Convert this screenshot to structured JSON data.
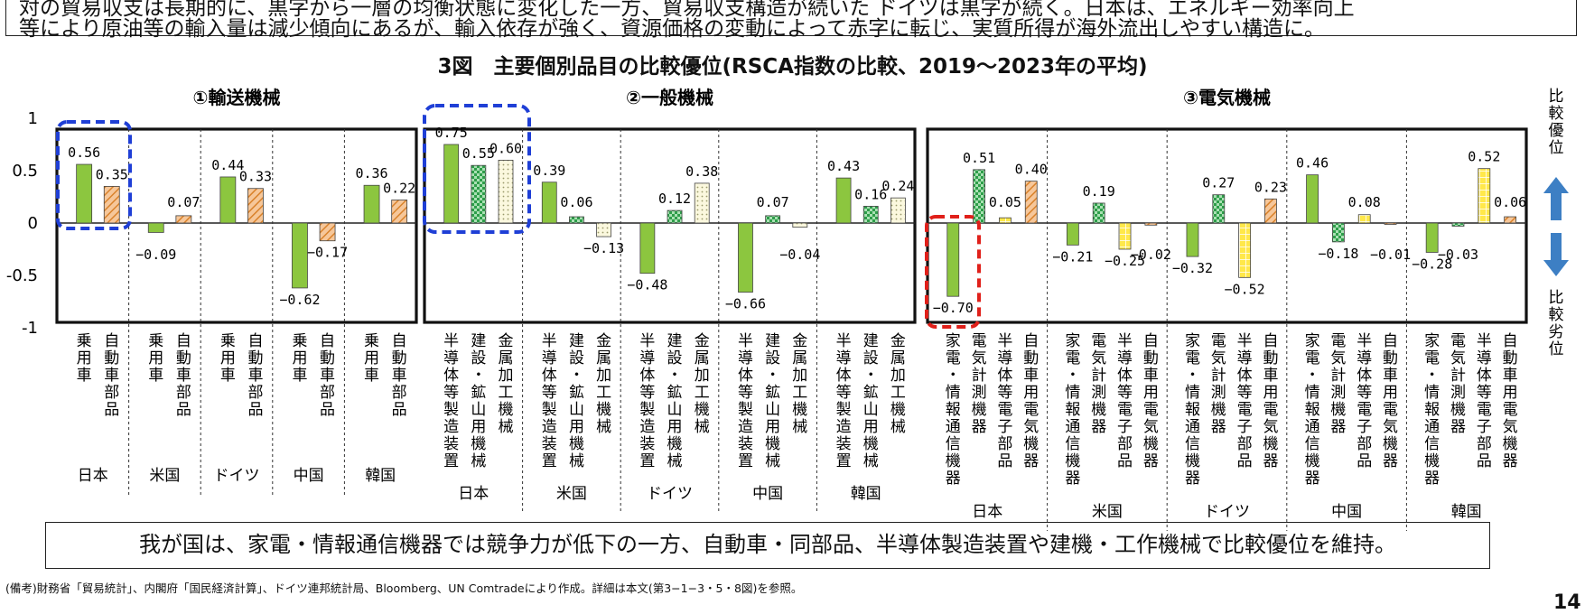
{
  "header": {
    "line1": "対の貿易収支は長期的に、黒字から一層の均衡状態に変化した一方、貿易収支構造が続いた ドイツは黒字が続く。日本は、エネルギー効率向上",
    "line2": "等により原油等の輸入量は減少傾向にあるが、輸入依存が強く、資源価格の変動によって赤字に転じ、実質所得が海外流出しやすい構造に。"
  },
  "colors": {
    "green": "#8cc63f",
    "orange_hatch": "#f4a460",
    "dark_green_check": "#2e9e4a",
    "light_dotted": "#f7f4cc",
    "yellow_grid": "#ffe032",
    "blue_dash": "#1f3fd6",
    "red_dash": "#e0201a",
    "arrow_blue": "#3d7fc4"
  },
  "footer": {
    "conclusion": "我が国は、家電・情報通信機器では競争力が低下の一方、自動車・同部品、半導体製造装置や建機・工作機械で比較優位を維持。",
    "source": "(備考)財務省「貿易統計」、内閣府「国民経済計算」、ドイツ連邦統計局、Bloomberg、UN Comtradeにより作成。詳細は本文(第3−1−3・5・8図)を参照。",
    "page": "14"
  },
  "side_labels": {
    "advantage": "比較優位",
    "disadvantage": "比較劣位"
  },
  "chart_data": {
    "type": "bar",
    "title": "3図　主要個別品目の比較優位(RSCA指数の比較、2019〜2023年の平均)",
    "ylim": [
      -1,
      1
    ],
    "yticks": [
      "1",
      "0.5",
      "0",
      "-0.5",
      "-1"
    ],
    "countries": [
      "日本",
      "米国",
      "ドイツ",
      "中国",
      "韓国"
    ],
    "panels": [
      {
        "name": "①輸送機械",
        "items": [
          "乗用車",
          "自動車部品"
        ],
        "values": {
          "日本": [
            0.56,
            0.35
          ],
          "米国": [
            -0.09,
            0.07
          ],
          "ドイツ": [
            0.44,
            0.33
          ],
          "中国": [
            -0.62,
            -0.17
          ],
          "韓国": [
            0.36,
            0.22
          ]
        }
      },
      {
        "name": "②一般機械",
        "items": [
          "半導体等製造装置",
          "建設・鉱山用機械",
          "金属加工機械"
        ],
        "values": {
          "日本": [
            0.75,
            0.55,
            0.6
          ],
          "米国": [
            0.39,
            0.06,
            -0.13
          ],
          "ドイツ": [
            -0.48,
            0.12,
            0.38
          ],
          "中国": [
            -0.66,
            0.07,
            -0.04
          ],
          "韓国": [
            0.43,
            0.16,
            0.24
          ]
        }
      },
      {
        "name": "③電気機械",
        "items": [
          "家電・情報通信機器",
          "電気計測機器",
          "半導体等電子部品",
          "自動車用電気機器"
        ],
        "values": {
          "日本": [
            -0.7,
            0.51,
            0.05,
            0.4
          ],
          "米国": [
            -0.21,
            0.19,
            -0.25,
            -0.02
          ],
          "ドイツ": [
            -0.32,
            0.27,
            -0.52,
            0.23
          ],
          "中国": [
            0.46,
            -0.18,
            0.08,
            -0.01
          ],
          "韓国": [
            -0.28,
            -0.03,
            0.52,
            0.06
          ]
        }
      }
    ]
  }
}
